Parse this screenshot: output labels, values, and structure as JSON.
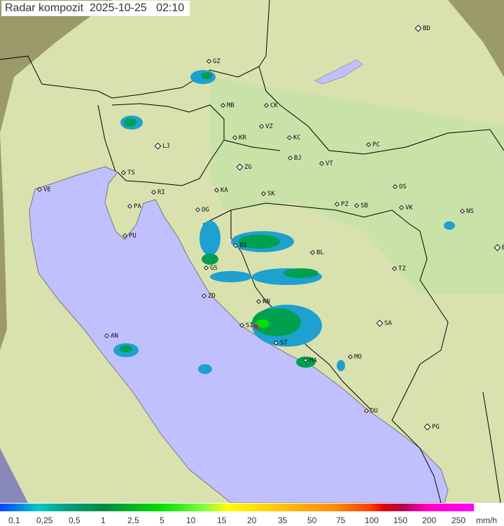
{
  "header": {
    "title": "Radar kompozit  2025-10-25   02:10"
  },
  "colors": {
    "sea": "#c0c0ff",
    "land": "#d8e0a8",
    "outside_coverage": "#9a9a6a",
    "border": "#000000",
    "rain_light": "#1ea0d0",
    "rain_medium": "#00a050",
    "rain_heavy": "#00e000"
  },
  "cities": [
    {
      "code": "BD",
      "cap": true
    },
    {
      "code": "GZ",
      "cap": false
    },
    {
      "code": "MB",
      "cap": false
    },
    {
      "code": "CK",
      "cap": false
    },
    {
      "code": "VZ",
      "cap": false
    },
    {
      "code": "KR",
      "cap": false
    },
    {
      "code": "KC",
      "cap": false
    },
    {
      "code": "LJ",
      "cap": true
    },
    {
      "code": "PC",
      "cap": false
    },
    {
      "code": "BJ",
      "cap": false
    },
    {
      "code": "ZG",
      "cap": true
    },
    {
      "code": "TS",
      "cap": false
    },
    {
      "code": "VT",
      "cap": false
    },
    {
      "code": "VE",
      "cap": false
    },
    {
      "code": "RI",
      "cap": false
    },
    {
      "code": "KA",
      "cap": false
    },
    {
      "code": "SK",
      "cap": false
    },
    {
      "code": "OS",
      "cap": false
    },
    {
      "code": "PA",
      "cap": false
    },
    {
      "code": "PZ",
      "cap": false
    },
    {
      "code": "SB",
      "cap": false
    },
    {
      "code": "VK",
      "cap": false
    },
    {
      "code": "NS",
      "cap": false
    },
    {
      "code": "OG",
      "cap": false
    },
    {
      "code": "PU",
      "cap": false
    },
    {
      "code": "BI",
      "cap": false
    },
    {
      "code": "BL",
      "cap": false
    },
    {
      "code": "BG",
      "cap": true
    },
    {
      "code": "GS",
      "cap": false
    },
    {
      "code": "TZ",
      "cap": false
    },
    {
      "code": "ZD",
      "cap": false
    },
    {
      "code": "KN",
      "cap": false
    },
    {
      "code": "SA",
      "cap": true
    },
    {
      "code": "SI",
      "cap": false
    },
    {
      "code": "AN",
      "cap": false
    },
    {
      "code": "ST",
      "cap": false
    },
    {
      "code": "MO",
      "cap": false
    },
    {
      "code": "MA",
      "cap": false
    },
    {
      "code": "DU",
      "cap": false
    },
    {
      "code": "PG",
      "cap": true
    }
  ],
  "legend": {
    "ticks": [
      "0,1",
      "0,25",
      "0,5",
      "1",
      "2,5",
      "5",
      "10",
      "15",
      "20",
      "35",
      "50",
      "75",
      "100",
      "150",
      "200",
      "250"
    ],
    "unit": "mm/h"
  }
}
